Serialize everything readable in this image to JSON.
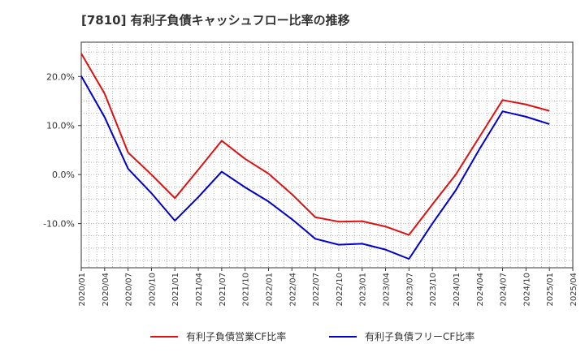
{
  "chart_data": {
    "type": "line",
    "title": "[7810]  有利子負債キャッシュフロー比率の推移",
    "xlabel": "",
    "ylabel": "",
    "x": [
      "2020/01",
      "2020/04",
      "2020/07",
      "2020/10",
      "2021/01",
      "2021/04",
      "2021/07",
      "2021/10",
      "2022/01",
      "2022/04",
      "2022/07",
      "2022/10",
      "2023/01",
      "2023/04",
      "2023/07",
      "2023/10",
      "2024/01",
      "2024/04",
      "2024/07",
      "2024/10",
      "2025/01",
      "2025/04"
    ],
    "y_ticks": [
      "20.0%",
      "10.0%",
      "0.0%",
      "-10.0%"
    ],
    "y_tick_values": [
      20,
      10,
      0,
      -10
    ],
    "ylim": [
      -19,
      27
    ],
    "grid": true,
    "legend_position": "bottom",
    "series": [
      {
        "name": "有利子負債営業CF比率",
        "color": "#dd1111",
        "values": [
          24.7,
          16.5,
          4.5,
          0.0,
          -4.8,
          1.0,
          6.9,
          3.2,
          0.2,
          -4.0,
          -8.7,
          -9.6,
          -9.5,
          -10.6,
          -12.3,
          -6.1,
          0.0,
          7.6,
          15.2,
          14.3,
          13.0,
          null
        ]
      },
      {
        "name": "有利子負債フリーCF比率",
        "color": "#0000cc",
        "values": [
          20.1,
          11.7,
          1.2,
          -3.8,
          -9.4,
          -4.6,
          0.6,
          -2.6,
          -5.5,
          -9.1,
          -13.1,
          -14.3,
          -14.1,
          -15.3,
          -17.2,
          -10.0,
          -3.2,
          5.1,
          12.9,
          11.8,
          10.3,
          null
        ]
      }
    ]
  }
}
